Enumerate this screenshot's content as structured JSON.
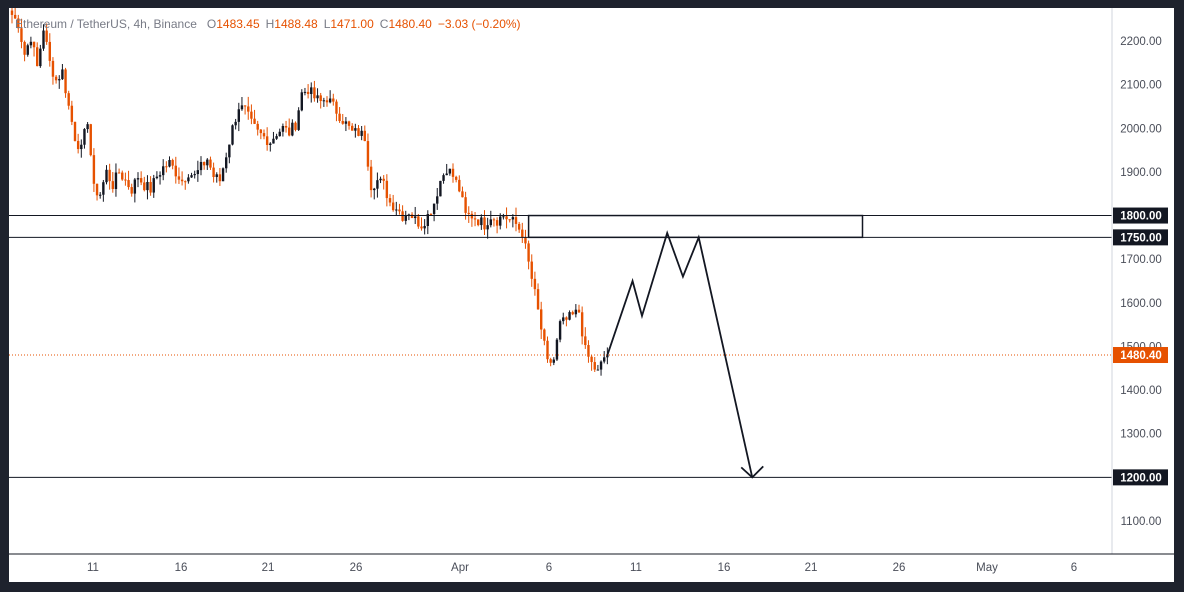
{
  "header": {
    "symbol": "Ethereum / TetherUS, 4h, Binance",
    "open_label": "O",
    "open": "1483.45",
    "high_label": "H",
    "high": "1488.48",
    "low_label": "L",
    "low": "1471.00",
    "close_label": "C",
    "close": "1480.40",
    "change": "−3.03 (−0.20%)"
  },
  "colors": {
    "up": "#131722",
    "down": "#e65100",
    "wick_up": "#131722",
    "wick_down": "#e65100",
    "price_line": "#e65100",
    "level_line": "#131722"
  },
  "chart_data": {
    "type": "candlestick",
    "title": "",
    "xlabel": "",
    "ylabel": "",
    "ylim": [
      1020,
      2250
    ],
    "y_ticks": [
      "2200.00",
      "2100.00",
      "2000.00",
      "1900.00",
      "1800.00",
      "1750.00",
      "1700.00",
      "1600.00",
      "1500.00",
      "1480.40",
      "1400.00",
      "1300.00",
      "1200.00",
      "1100.00"
    ],
    "x_ticks": [
      "11",
      "16",
      "21",
      "26",
      "Apr",
      "6",
      "11",
      "16",
      "21",
      "26",
      "May",
      "6"
    ],
    "price_path": [
      [
        0,
        2260
      ],
      [
        2,
        2240
      ],
      [
        4,
        2170
      ],
      [
        6,
        2210
      ],
      [
        8,
        2140
      ],
      [
        10,
        2230
      ],
      [
        12,
        2150
      ],
      [
        14,
        2110
      ],
      [
        16,
        2130
      ],
      [
        18,
        2050
      ],
      [
        20,
        1980
      ],
      [
        22,
        1950
      ],
      [
        24,
        2020
      ],
      [
        26,
        1860
      ],
      [
        28,
        1850
      ],
      [
        30,
        1900
      ],
      [
        32,
        1870
      ],
      [
        34,
        1900
      ],
      [
        36,
        1880
      ],
      [
        38,
        1860
      ],
      [
        40,
        1890
      ],
      [
        42,
        1870
      ],
      [
        44,
        1860
      ],
      [
        46,
        1890
      ],
      [
        48,
        1910
      ],
      [
        50,
        1920
      ],
      [
        52,
        1900
      ],
      [
        54,
        1880
      ],
      [
        56,
        1900
      ],
      [
        58,
        1890
      ],
      [
        60,
        1910
      ],
      [
        62,
        1930
      ],
      [
        64,
        1890
      ],
      [
        66,
        1880
      ],
      [
        68,
        1940
      ],
      [
        70,
        2000
      ],
      [
        72,
        2050
      ],
      [
        74,
        2040
      ],
      [
        76,
        2010
      ],
      [
        78,
        1990
      ],
      [
        80,
        1980
      ],
      [
        82,
        1970
      ],
      [
        84,
        1990
      ],
      [
        86,
        2000
      ],
      [
        88,
        1990
      ],
      [
        90,
        2010
      ],
      [
        92,
        2080
      ],
      [
        94,
        2090
      ],
      [
        96,
        2070
      ],
      [
        98,
        2060
      ],
      [
        100,
        2070
      ],
      [
        102,
        2050
      ],
      [
        104,
        2030
      ],
      [
        106,
        2010
      ],
      [
        108,
        1990
      ],
      [
        110,
        1990
      ],
      [
        112,
        1980
      ],
      [
        114,
        1870
      ],
      [
        116,
        1880
      ],
      [
        118,
        1870
      ],
      [
        120,
        1830
      ],
      [
        122,
        1820
      ],
      [
        124,
        1800
      ],
      [
        126,
        1810
      ],
      [
        128,
        1790
      ],
      [
        130,
        1780
      ],
      [
        132,
        1800
      ],
      [
        134,
        1830
      ],
      [
        136,
        1880
      ],
      [
        138,
        1910
      ],
      [
        140,
        1890
      ],
      [
        142,
        1860
      ],
      [
        144,
        1800
      ],
      [
        146,
        1800
      ],
      [
        148,
        1790
      ],
      [
        150,
        1780
      ],
      [
        152,
        1800
      ],
      [
        154,
        1790
      ],
      [
        156,
        1800
      ],
      [
        158,
        1790
      ],
      [
        160,
        1780
      ],
      [
        162,
        1760
      ],
      [
        164,
        1690
      ],
      [
        166,
        1620
      ],
      [
        168,
        1540
      ],
      [
        170,
        1460
      ],
      [
        172,
        1470
      ],
      [
        174,
        1550
      ],
      [
        176,
        1560
      ],
      [
        178,
        1570
      ],
      [
        180,
        1580
      ],
      [
        182,
        1490
      ],
      [
        184,
        1460
      ],
      [
        186,
        1440
      ],
      [
        188,
        1475
      ],
      [
        189,
        1480.4
      ]
    ],
    "levels": [
      {
        "value": 1800,
        "label": "1800.00"
      },
      {
        "value": 1750,
        "label": "1750.00"
      },
      {
        "value": 1200,
        "label": "1200.00"
      }
    ],
    "current_price": {
      "value": 1480.4,
      "label": "1480.40"
    },
    "zone": {
      "from_date_index": 164,
      "to_date_index": 270,
      "low": 1750,
      "high": 1800
    },
    "projection_path": [
      [
        189,
        1480
      ],
      [
        197,
        1650
      ],
      [
        200,
        1570
      ],
      [
        208,
        1760
      ],
      [
        213,
        1660
      ],
      [
        218,
        1750
      ],
      [
        235,
        1200
      ]
    ]
  }
}
